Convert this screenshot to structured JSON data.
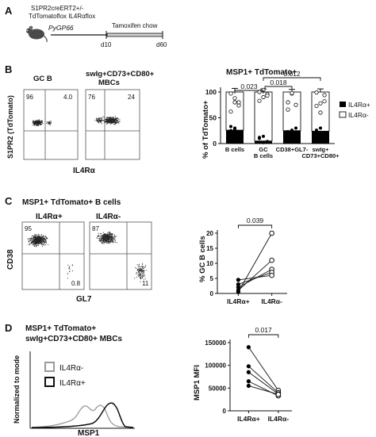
{
  "panels": {
    "A": {
      "letter": "A",
      "strain_line1": "S1PR2creERT2+/-",
      "strain_line2": "TdTomatoflox IL4Rαflox",
      "infection": "PyGP66",
      "treatment": "Tamoxifen chow",
      "day_start": "d10",
      "day_end": "d60"
    },
    "B": {
      "letter": "B",
      "flow_titles": [
        "GC B",
        "swIg+CD73+CD80+\nMBCs"
      ],
      "flow_quadrants": [
        {
          "tl": "96",
          "tr": "4.0"
        },
        {
          "tl": "76",
          "tr": "24"
        }
      ],
      "flow_ylabel": "S1PR2 (TdTomato)",
      "flow_xlabel": "IL4Rα"
    },
    "C": {
      "letter": "C",
      "section_title": "MSP1+ TdTomato+ B cells",
      "flow_titles": [
        "IL4Rα+",
        "IL4Rα-"
      ],
      "flow_quadrants": [
        {
          "tl": "95",
          "br": "0.8"
        },
        {
          "tl": "87",
          "br": "11"
        }
      ],
      "flow_ylabel": "CD38",
      "flow_xlabel": "GL7"
    },
    "D": {
      "letter": "D",
      "section_title_line1": "MSP1+ TdTomato+",
      "section_title_line2": "swIg+CD73+CD80+ MBCs",
      "hist_ylabel": "Normalized to mode",
      "hist_xlabel": "MSP1",
      "hist_legend": [
        "IL4Rα-",
        "IL4Rα+"
      ]
    }
  },
  "colors": {
    "ink": "#111111",
    "gray": "#9a9a9a",
    "grid": "#555555",
    "dots": "#222222"
  },
  "chart_data": [
    {
      "id": "B-bar",
      "type": "bar",
      "title": "MSP1+ TdTomato+",
      "ylabel": "% of TdTomato+",
      "ylim": [
        0,
        100
      ],
      "yticks": [
        0,
        50,
        100
      ],
      "categories": [
        "B cells",
        "GC\nB cells",
        "CD38+GL7-",
        "swIg+\nCD73+CD80+"
      ],
      "series": [
        {
          "name": "IL4Rα+",
          "values": [
            26,
            5,
            25,
            24
          ]
        },
        {
          "name": "IL4Rα-",
          "values": [
            74,
            95,
            75,
            76
          ]
        }
      ],
      "error_top": [
        107,
        106,
        105,
        106
      ],
      "points_positive": [
        [
          25,
          30,
          22,
          33,
          28
        ],
        [
          10,
          2,
          4,
          12,
          14
        ],
        [
          20,
          26,
          30,
          23
        ],
        [
          22,
          30,
          20,
          26
        ]
      ],
      "points_negative": [
        [
          62,
          80,
          74,
          97,
          88,
          80
        ],
        [
          83,
          90,
          96,
          100,
          104,
          93
        ],
        [
          80,
          97,
          75,
          66,
          98
        ],
        [
          73,
          78,
          94,
          99,
          60,
          82
        ]
      ],
      "brackets": [
        {
          "from": 0,
          "to": 1,
          "label": "0.023"
        },
        {
          "from": 1,
          "to": 3,
          "label": "0.012"
        },
        {
          "from": 1,
          "to": 2,
          "label": "0.018"
        }
      ],
      "legend": "right"
    },
    {
      "id": "C-paired",
      "type": "scatter",
      "ylabel": "% GC B cells",
      "ylim": [
        0,
        20
      ],
      "yticks": [
        0,
        5,
        10,
        15,
        20
      ],
      "categories": [
        "IL4Rα+",
        "IL4Rα-"
      ],
      "pairs": [
        [
          0.5,
          20
        ],
        [
          1,
          11
        ],
        [
          2,
          8
        ],
        [
          3,
          7
        ],
        [
          4.5,
          6
        ]
      ],
      "significance": "0.039"
    },
    {
      "id": "D-paired",
      "type": "scatter",
      "ylabel": "MSP1 MFI",
      "ylim": [
        0,
        150000
      ],
      "yticks": [
        0,
        50000,
        100000,
        150000
      ],
      "categories": [
        "IL4Rα+",
        "IL4Rα-"
      ],
      "pairs": [
        [
          140000,
          45000
        ],
        [
          98000,
          40000
        ],
        [
          85000,
          37000
        ],
        [
          65000,
          33000
        ],
        [
          55000,
          36000
        ]
      ],
      "significance": "0.017"
    }
  ]
}
